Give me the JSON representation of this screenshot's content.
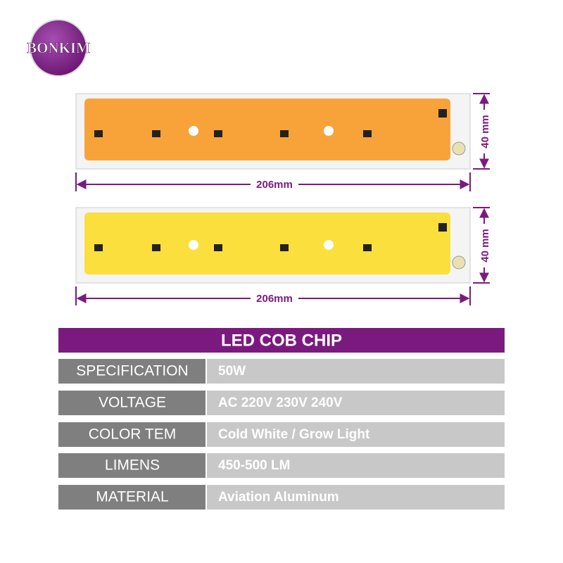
{
  "logo": {
    "text": "BONKIM"
  },
  "chips": [
    {
      "width_label": "206mm",
      "height_label": "40 mm",
      "color": "#f7a33a"
    },
    {
      "width_label": "206mm",
      "height_label": "40 mm",
      "color": "#fbdf3c"
    }
  ],
  "table": {
    "title": "LED COB CHIP",
    "rows": [
      [
        "SPECIFICATION",
        "50W"
      ],
      [
        "VOLTAGE",
        "AC 220V 230V 240V"
      ],
      [
        "COLOR TEM",
        "Cold White / Grow Light"
      ],
      [
        "LIMENS",
        "450-500 LM"
      ],
      [
        "MATERIAL",
        "Aviation Aluminum"
      ]
    ]
  }
}
